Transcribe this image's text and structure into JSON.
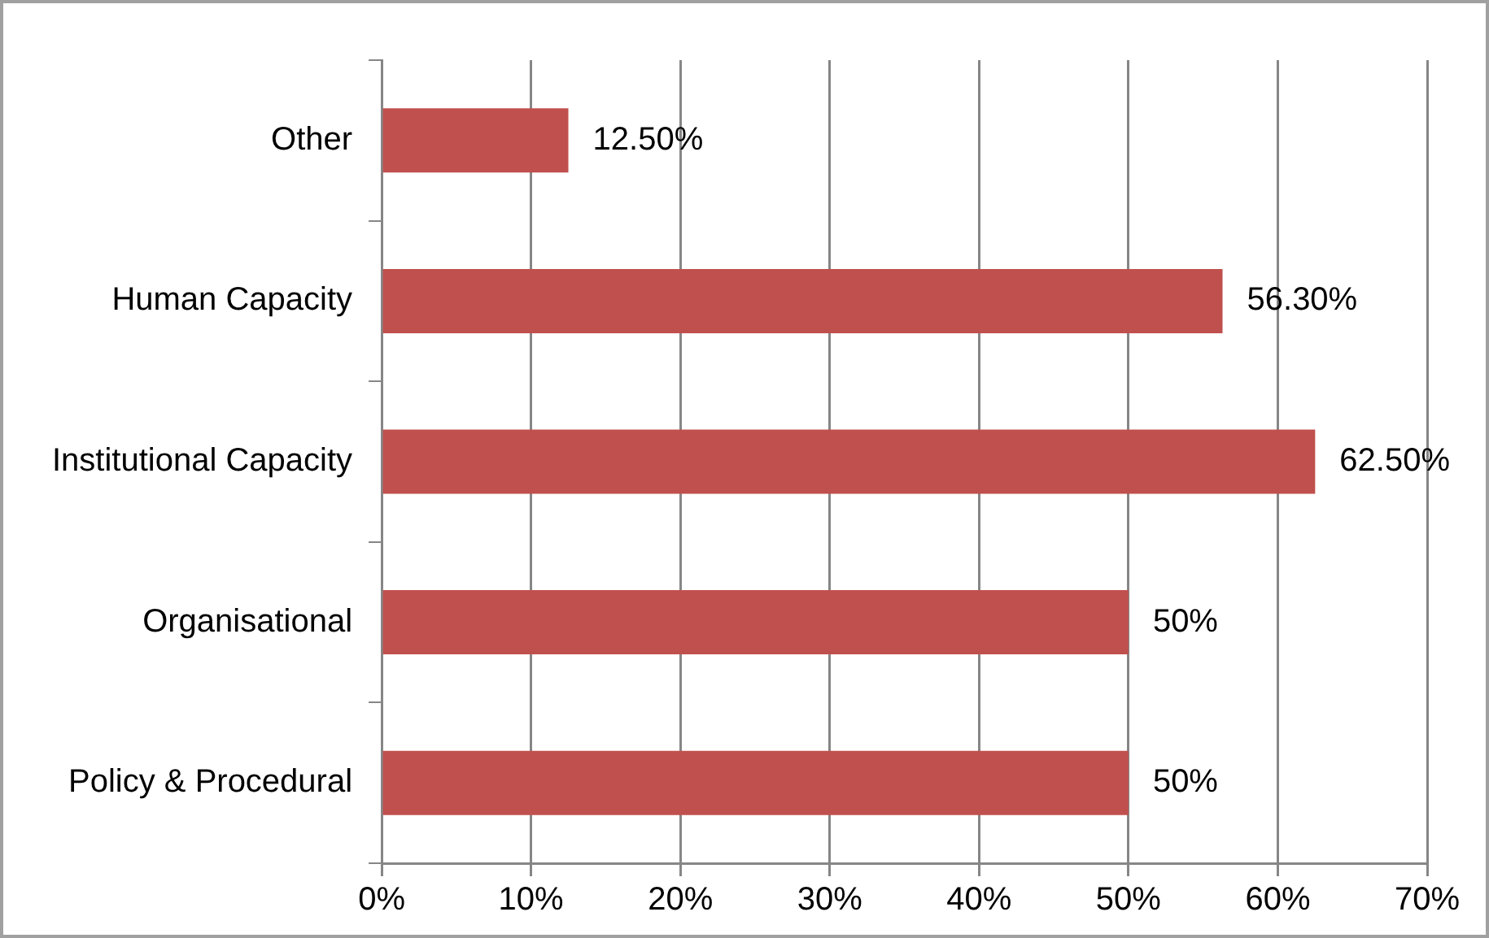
{
  "chart_data": {
    "type": "bar",
    "orientation": "horizontal",
    "categories": [
      "Other",
      "Human Capacity",
      "Institutional Capacity",
      "Organisational",
      "Policy & Procedural"
    ],
    "values": [
      12.5,
      56.3,
      62.5,
      50,
      50
    ],
    "value_labels": [
      "12.50%",
      "56.30%",
      "62.50%",
      "50%",
      "50%"
    ],
    "color": "#c0504d",
    "xlim": [
      0,
      70
    ],
    "xticks": [
      {
        "value": 0,
        "label": "0%"
      },
      {
        "value": 10,
        "label": "10%"
      },
      {
        "value": 20,
        "label": "20%"
      },
      {
        "value": 30,
        "label": "30%"
      },
      {
        "value": 40,
        "label": "40%"
      },
      {
        "value": 50,
        "label": "50%"
      },
      {
        "value": 60,
        "label": "60%"
      },
      {
        "value": 70,
        "label": "70%"
      }
    ],
    "grid": "x",
    "legend": false
  }
}
